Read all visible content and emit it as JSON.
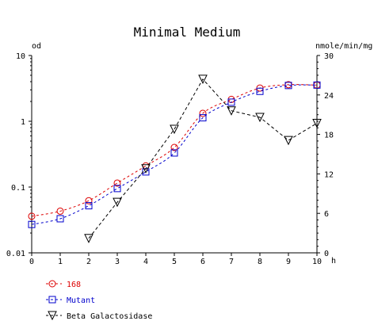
{
  "chart_data": {
    "type": "line",
    "title": "Minimal Medium",
    "left_axis": {
      "label": "od",
      "scale": "log",
      "range": [
        0.01,
        10
      ],
      "ticks": [
        {
          "value": 0.01,
          "label": "0.01"
        },
        {
          "value": 0.1,
          "label": "0.1"
        },
        {
          "value": 1,
          "label": "1"
        },
        {
          "value": 10,
          "label": "10"
        }
      ]
    },
    "right_axis": {
      "label": "nmole/min/mg",
      "scale": "linear",
      "range": [
        0,
        30
      ],
      "ticks": [
        {
          "value": 0,
          "label": "0"
        },
        {
          "value": 6,
          "label": "6"
        },
        {
          "value": 12,
          "label": "12"
        },
        {
          "value": 18,
          "label": "18"
        },
        {
          "value": 24,
          "label": "24"
        },
        {
          "value": 30,
          "label": "30"
        }
      ]
    },
    "x_axis": {
      "unit": "h",
      "range": [
        0,
        10
      ],
      "ticks": [
        "0",
        "1",
        "2",
        "3",
        "4",
        "5",
        "6",
        "7",
        "8",
        "9",
        "10"
      ]
    },
    "grid": false,
    "legend_position": "bottom-left",
    "series": [
      {
        "name": "168",
        "axis": "left",
        "color": "#dd0000",
        "marker": "circle",
        "x": [
          0,
          1,
          2,
          3,
          4,
          5,
          6,
          7,
          8,
          9,
          10
        ],
        "y": [
          0.036,
          0.043,
          0.062,
          0.115,
          0.21,
          0.4,
          1.32,
          2.15,
          3.2,
          3.6,
          3.55
        ]
      },
      {
        "name": "Mutant",
        "axis": "left",
        "color": "#0000cc",
        "marker": "square",
        "x": [
          0,
          1,
          2,
          3,
          4,
          5,
          6,
          7,
          8,
          9,
          10
        ],
        "y": [
          0.027,
          0.033,
          0.052,
          0.095,
          0.17,
          0.33,
          1.13,
          1.95,
          2.85,
          3.5,
          3.55
        ]
      },
      {
        "name": "Beta Galactosidase",
        "axis": "right",
        "color": "#000000",
        "marker": "triangle-down",
        "x": [
          2,
          3,
          4,
          5,
          6,
          7,
          8,
          9,
          10
        ],
        "y": [
          2.2,
          7.7,
          12.8,
          18.8,
          26.4,
          21.6,
          20.6,
          17.1,
          19.7
        ]
      }
    ]
  }
}
